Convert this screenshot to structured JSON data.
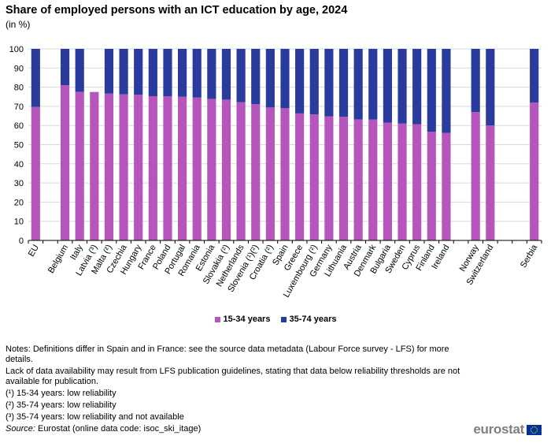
{
  "title": "Share of employed persons with an ICT education by age, 2024",
  "subtitle": "(in %)",
  "legend": {
    "young_label": "15-34 years",
    "old_label": "35-74 years"
  },
  "colors": {
    "young": "#b656bd",
    "old": "#2a3b9e",
    "grid": "#d9d9d9"
  },
  "notes": {
    "line1": "Notes: Definitions differ in Spain and in France: see the source data metadata (Labour Force survey - LFS) for more details.",
    "line2": "Lack of data availability may result from LFS publication guidelines, stating that data below reliability thresholds are not available for publication.",
    "line3": "(¹) 15-34 years: low reliability",
    "line4": "(²) 35-74 years: low reliability",
    "line5": "(³) 35-74 years: low reliability and not available",
    "source_label": "Source:",
    "source_text": " Eurostat (online data code: isoc_ski_itage)"
  },
  "logo": {
    "text": "eurostat",
    "icon": "eu-flag-icon"
  },
  "chart_data": {
    "type": "bar",
    "stacked": true,
    "ylim": [
      0,
      100
    ],
    "yticks": [
      0,
      10,
      20,
      30,
      40,
      50,
      60,
      70,
      80,
      90,
      100
    ],
    "legend_position": "bottom-center",
    "grid": true,
    "categories": [
      "EU",
      "",
      "Belgium",
      "Italy",
      "Latvia (³)",
      "Malta (²)",
      "Czechia",
      "Hungary",
      "France",
      "Poland",
      "Portugal",
      "Romania",
      "Estonia",
      "Slovakia (²)",
      "Netherlands",
      "Slovenia (¹)(²)",
      "Croatia (²)",
      "Spain",
      "Greece",
      "Luxembourg (²)",
      "Germany",
      "Lithuania",
      "Austria",
      "Denmark",
      "Bulgaria",
      "Sweden",
      "Cyprus",
      "Finland",
      "Ireland",
      "",
      "Norway",
      "Switzerland",
      "",
      "",
      "Serbia"
    ],
    "series": [
      {
        "name": "15-34 years",
        "values": [
          69.7,
          null,
          81.0,
          77.6,
          77.5,
          76.7,
          76.3,
          76.1,
          75.3,
          75.2,
          75.0,
          74.6,
          73.9,
          73.5,
          72.2,
          71.1,
          69.4,
          69.0,
          66.3,
          65.8,
          64.7,
          64.5,
          63.2,
          63.1,
          61.5,
          61.0,
          60.7,
          56.7,
          56.1,
          null,
          67.0,
          60.0,
          null,
          null,
          71.9
        ]
      },
      {
        "name": "35-74 years",
        "values": [
          30.3,
          null,
          19.0,
          22.4,
          null,
          23.3,
          23.7,
          23.9,
          24.7,
          24.8,
          25.0,
          25.4,
          26.1,
          26.5,
          27.8,
          28.9,
          30.6,
          31.0,
          33.7,
          34.2,
          35.3,
          35.5,
          36.8,
          36.9,
          38.5,
          39.0,
          39.3,
          43.3,
          43.9,
          null,
          33.0,
          40.0,
          null,
          null,
          28.1
        ]
      }
    ]
  }
}
